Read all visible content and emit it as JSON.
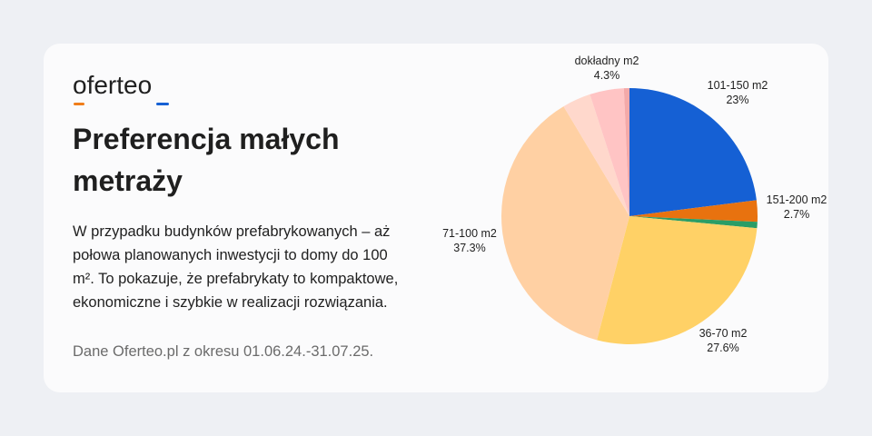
{
  "brand": {
    "logo_text": "oferteo",
    "accent_colors": [
      "#f07d1a",
      "#1560d4"
    ]
  },
  "header": {
    "title": "Preferencja małych metraży"
  },
  "description": "W przypadku budynków prefabrykowanych – aż połowa planowanych inwestycji to domy do 100 m². To pokazuje, że prefabrykaty to kompaktowe, ekonomiczne i szybkie w realizacji rozwiązania.",
  "source_note": "Dane Oferteo.pl z okresu 01.06.24.-31.07.25.",
  "chart_data": {
    "type": "pie",
    "title": "",
    "start_angle_deg": 0,
    "direction": "clockwise",
    "legend": "none",
    "slices": [
      {
        "label": "101-150 m2",
        "value": 23.0,
        "value_label": "23%",
        "color": "#1560d4",
        "labeled": true
      },
      {
        "label": "151-200 m2",
        "value": 2.7,
        "value_label": "2.7%",
        "color": "#e8720f",
        "labeled": true
      },
      {
        "label": "",
        "value": 0.8,
        "value_label": "",
        "color": "#2a9d66",
        "labeled": false
      },
      {
        "label": "36-70 m2",
        "value": 27.6,
        "value_label": "27.6%",
        "color": "#ffd166",
        "labeled": true
      },
      {
        "label": "71-100 m2",
        "value": 37.3,
        "value_label": "37.3%",
        "color": "#ffd0a3",
        "labeled": true
      },
      {
        "label": "",
        "value": 3.6,
        "value_label": "",
        "color": "#ffd8cc",
        "labeled": false
      },
      {
        "label": "dokładny m2",
        "value": 4.3,
        "value_label": "4.3%",
        "color": "#ffc4c4",
        "labeled": true
      },
      {
        "label": "",
        "value": 0.7,
        "value_label": "",
        "color": "#f4a9a9",
        "labeled": false
      }
    ]
  }
}
